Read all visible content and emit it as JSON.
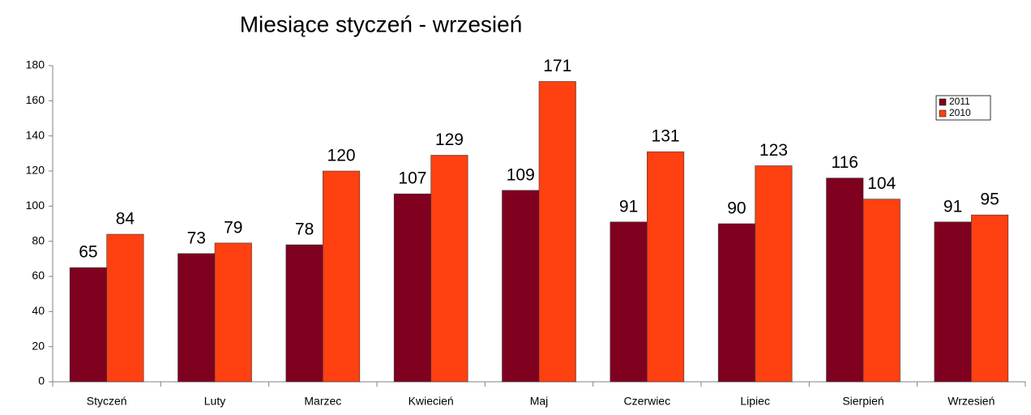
{
  "chart_data": {
    "type": "bar",
    "title": "Miesiące styczeń - wrzesień",
    "categories": [
      "Styczeń",
      "Luty",
      "Marzec",
      "Kwiecień",
      "Maj",
      "Czerwiec",
      "Lipiec",
      "Sierpień",
      "Wrzesień"
    ],
    "series": [
      {
        "name": "2011",
        "color": "#800020",
        "values": [
          65,
          73,
          78,
          107,
          109,
          91,
          90,
          116,
          91
        ]
      },
      {
        "name": "2010",
        "color": "#ff4010",
        "values": [
          84,
          79,
          120,
          129,
          171,
          131,
          123,
          104,
          95
        ]
      }
    ],
    "ylim": [
      0,
      180
    ],
    "yticks": [
      0,
      20,
      40,
      60,
      80,
      100,
      120,
      140,
      160,
      180
    ],
    "legend": "top-right"
  }
}
